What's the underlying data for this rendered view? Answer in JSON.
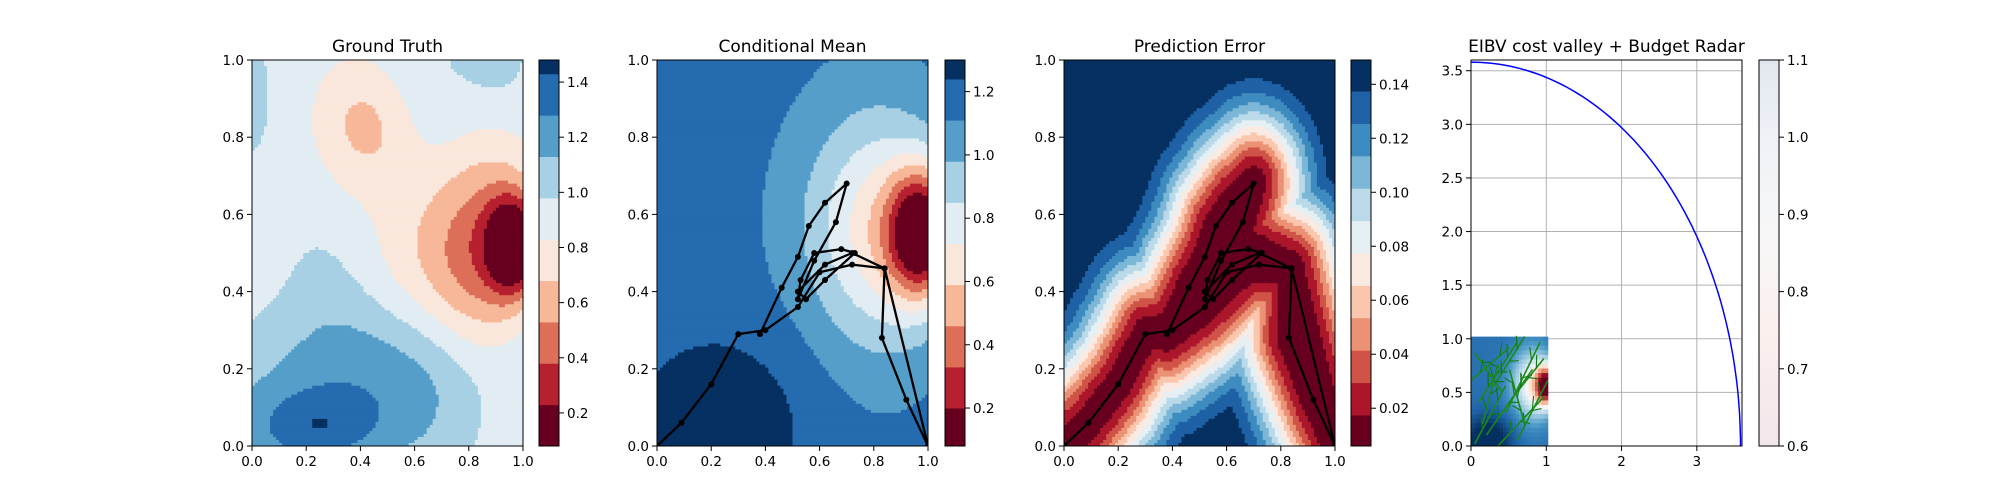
{
  "chart_data": [
    {
      "type": "heatmap",
      "title": "Ground Truth",
      "xlim": [
        0,
        1
      ],
      "ylim": [
        0,
        1
      ],
      "x_ticks": [
        "0.0",
        "0.2",
        "0.4",
        "0.6",
        "0.8",
        "1.0"
      ],
      "y_ticks": [
        "0.0",
        "0.2",
        "0.4",
        "0.6",
        "0.8",
        "1.0"
      ],
      "levels": [
        0.08,
        0.23,
        0.38,
        0.53,
        0.68,
        0.83,
        0.98,
        1.13,
        1.28,
        1.43,
        1.48
      ],
      "colorbar_ticks": [
        "0.2",
        "0.4",
        "0.6",
        "0.8",
        "1.0",
        "1.2",
        "1.4"
      ],
      "colorbar_tick_values": [
        0.2,
        0.4,
        0.6,
        0.8,
        1.0,
        1.2,
        1.4
      ],
      "colormap": "RdBu"
    },
    {
      "type": "heatmap",
      "title": "Conditional Mean",
      "xlim": [
        0,
        1
      ],
      "ylim": [
        0,
        1
      ],
      "x_ticks": [
        "0.0",
        "0.2",
        "0.4",
        "0.6",
        "0.8",
        "1.0"
      ],
      "y_ticks": [
        "0.0",
        "0.2",
        "0.4",
        "0.6",
        "0.8",
        "1.0"
      ],
      "levels": [
        0.08,
        0.2,
        0.33,
        0.46,
        0.59,
        0.72,
        0.85,
        0.98,
        1.11,
        1.24,
        1.3
      ],
      "colorbar_ticks": [
        "0.2",
        "0.4",
        "0.6",
        "0.8",
        "1.0",
        "1.2"
      ],
      "colorbar_tick_values": [
        0.2,
        0.4,
        0.6,
        0.8,
        1.0,
        1.2
      ],
      "colormap": "RdBu",
      "path": {
        "x": [
          0.0,
          0.09,
          0.2,
          0.3,
          0.4,
          0.52,
          0.6,
          0.72,
          0.84,
          0.83,
          0.92,
          1.0,
          0.84,
          0.72,
          0.62,
          0.52,
          0.55,
          0.62,
          0.73,
          0.68,
          0.58,
          0.53,
          0.52,
          0.58,
          0.66,
          0.7,
          0.62,
          0.56,
          0.52,
          0.46,
          0.38
        ],
        "y": [
          0.0,
          0.06,
          0.16,
          0.29,
          0.3,
          0.36,
          0.45,
          0.47,
          0.46,
          0.28,
          0.12,
          0.0,
          0.46,
          0.5,
          0.47,
          0.4,
          0.38,
          0.43,
          0.5,
          0.51,
          0.5,
          0.43,
          0.38,
          0.48,
          0.58,
          0.68,
          0.63,
          0.57,
          0.49,
          0.41,
          0.29
        ]
      }
    },
    {
      "type": "heatmap",
      "title": "Prediction Error",
      "xlim": [
        0,
        1
      ],
      "ylim": [
        0,
        1
      ],
      "x_ticks": [
        "0.0",
        "0.2",
        "0.4",
        "0.6",
        "0.8",
        "1.0"
      ],
      "y_ticks": [
        "0.0",
        "0.2",
        "0.4",
        "0.6",
        "0.8",
        "1.0"
      ],
      "levels": [
        0.006,
        0.0175,
        0.0295,
        0.0415,
        0.0535,
        0.0655,
        0.0775,
        0.0895,
        0.1015,
        0.1135,
        0.1255,
        0.1375,
        0.149
      ],
      "colorbar_ticks": [
        "0.02",
        "0.04",
        "0.06",
        "0.08",
        "0.10",
        "0.12",
        "0.14"
      ],
      "colorbar_tick_values": [
        0.02,
        0.04,
        0.06,
        0.08,
        0.1,
        0.12,
        0.14
      ],
      "colormap": "RdBu",
      "path": {
        "x": [
          0.0,
          0.09,
          0.2,
          0.3,
          0.4,
          0.52,
          0.6,
          0.72,
          0.84,
          0.83,
          0.92,
          1.0,
          0.84,
          0.72,
          0.62,
          0.52,
          0.55,
          0.62,
          0.73,
          0.68,
          0.58,
          0.53,
          0.52,
          0.58,
          0.66,
          0.7,
          0.62,
          0.56,
          0.52,
          0.46,
          0.38
        ],
        "y": [
          0.0,
          0.06,
          0.16,
          0.29,
          0.3,
          0.36,
          0.45,
          0.47,
          0.46,
          0.28,
          0.12,
          0.0,
          0.46,
          0.5,
          0.47,
          0.4,
          0.38,
          0.43,
          0.5,
          0.51,
          0.5,
          0.43,
          0.38,
          0.48,
          0.58,
          0.68,
          0.63,
          0.57,
          0.49,
          0.41,
          0.29
        ]
      }
    },
    {
      "type": "line",
      "title": "EIBV cost valley + Budget Radar",
      "xlim": [
        0,
        3.6
      ],
      "ylim": [
        0,
        3.6
      ],
      "x_ticks": [
        "0",
        "1",
        "2",
        "3"
      ],
      "x_tick_values": [
        0,
        1,
        2,
        3
      ],
      "y_ticks": [
        "0.0",
        "0.5",
        "1.0",
        "1.5",
        "2.0",
        "2.5",
        "3.0",
        "3.5"
      ],
      "y_tick_values": [
        0,
        0.5,
        1,
        1.5,
        2,
        2.5,
        3,
        3.5
      ],
      "grid": true,
      "budget_radius": 3.58,
      "series_color": "#0000ff",
      "inset_extent": [
        0,
        1.02,
        0,
        1.02
      ],
      "colorbar_range": [
        0.6,
        1.1
      ],
      "colorbar_ticks": [
        "0.6",
        "0.7",
        "0.8",
        "0.9",
        "1.0",
        "1.1"
      ],
      "colorbar_tick_values": [
        0.6,
        0.7,
        0.8,
        0.9,
        1.0,
        1.1
      ],
      "colormap": "RdBu"
    }
  ]
}
